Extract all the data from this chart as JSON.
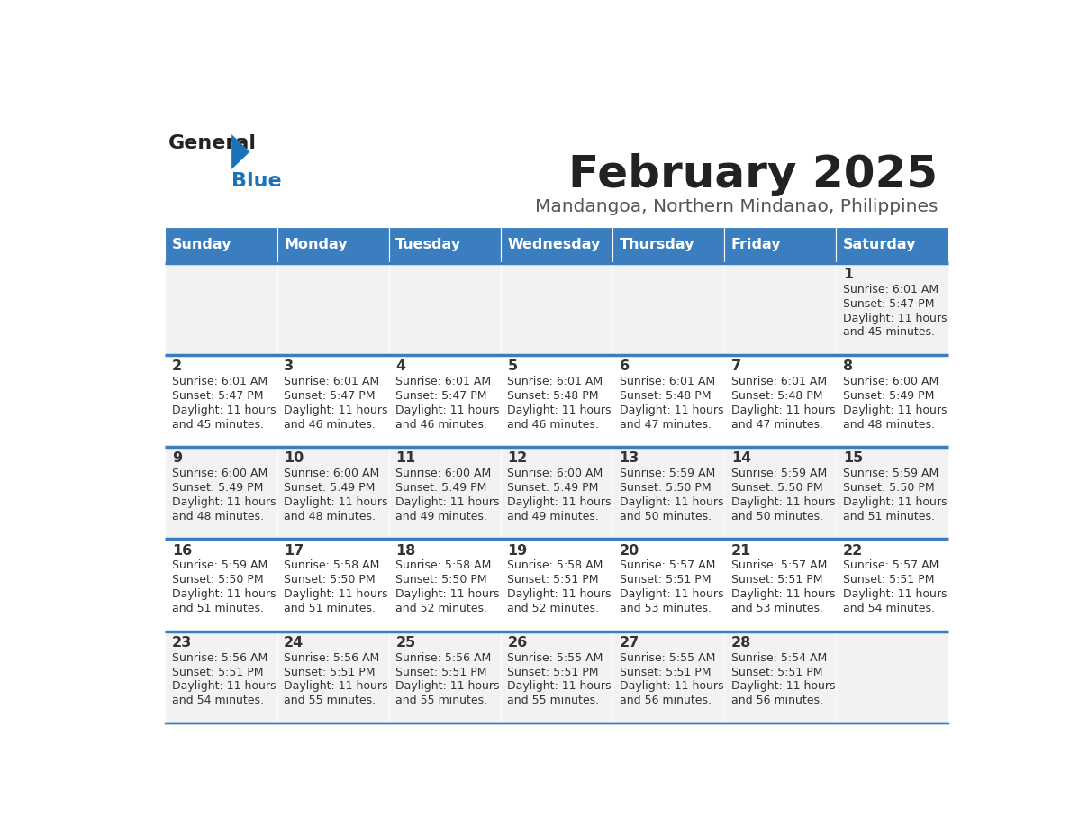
{
  "title": "February 2025",
  "subtitle": "Mandangoa, Northern Mindanao, Philippines",
  "days_of_week": [
    "Sunday",
    "Monday",
    "Tuesday",
    "Wednesday",
    "Thursday",
    "Friday",
    "Saturday"
  ],
  "header_bg": "#3a7ebf",
  "header_text": "#ffffff",
  "row_bg_odd": "#f2f2f2",
  "row_bg_even": "#ffffff",
  "separator_color": "#3a7ebf",
  "text_color": "#333333",
  "title_color": "#222222",
  "subtitle_color": "#555555",
  "logo_general_color": "#222222",
  "logo_blue_color": "#1a72b8",
  "calendar_data": [
    {
      "day": 1,
      "col": 6,
      "row": 0,
      "sunrise": "6:01 AM",
      "sunset": "5:47 PM",
      "daylight_hours": 11,
      "daylight_minutes": 45
    },
    {
      "day": 2,
      "col": 0,
      "row": 1,
      "sunrise": "6:01 AM",
      "sunset": "5:47 PM",
      "daylight_hours": 11,
      "daylight_minutes": 45
    },
    {
      "day": 3,
      "col": 1,
      "row": 1,
      "sunrise": "6:01 AM",
      "sunset": "5:47 PM",
      "daylight_hours": 11,
      "daylight_minutes": 46
    },
    {
      "day": 4,
      "col": 2,
      "row": 1,
      "sunrise": "6:01 AM",
      "sunset": "5:47 PM",
      "daylight_hours": 11,
      "daylight_minutes": 46
    },
    {
      "day": 5,
      "col": 3,
      "row": 1,
      "sunrise": "6:01 AM",
      "sunset": "5:48 PM",
      "daylight_hours": 11,
      "daylight_minutes": 46
    },
    {
      "day": 6,
      "col": 4,
      "row": 1,
      "sunrise": "6:01 AM",
      "sunset": "5:48 PM",
      "daylight_hours": 11,
      "daylight_minutes": 47
    },
    {
      "day": 7,
      "col": 5,
      "row": 1,
      "sunrise": "6:01 AM",
      "sunset": "5:48 PM",
      "daylight_hours": 11,
      "daylight_minutes": 47
    },
    {
      "day": 8,
      "col": 6,
      "row": 1,
      "sunrise": "6:00 AM",
      "sunset": "5:49 PM",
      "daylight_hours": 11,
      "daylight_minutes": 48
    },
    {
      "day": 9,
      "col": 0,
      "row": 2,
      "sunrise": "6:00 AM",
      "sunset": "5:49 PM",
      "daylight_hours": 11,
      "daylight_minutes": 48
    },
    {
      "day": 10,
      "col": 1,
      "row": 2,
      "sunrise": "6:00 AM",
      "sunset": "5:49 PM",
      "daylight_hours": 11,
      "daylight_minutes": 48
    },
    {
      "day": 11,
      "col": 2,
      "row": 2,
      "sunrise": "6:00 AM",
      "sunset": "5:49 PM",
      "daylight_hours": 11,
      "daylight_minutes": 49
    },
    {
      "day": 12,
      "col": 3,
      "row": 2,
      "sunrise": "6:00 AM",
      "sunset": "5:49 PM",
      "daylight_hours": 11,
      "daylight_minutes": 49
    },
    {
      "day": 13,
      "col": 4,
      "row": 2,
      "sunrise": "5:59 AM",
      "sunset": "5:50 PM",
      "daylight_hours": 11,
      "daylight_minutes": 50
    },
    {
      "day": 14,
      "col": 5,
      "row": 2,
      "sunrise": "5:59 AM",
      "sunset": "5:50 PM",
      "daylight_hours": 11,
      "daylight_minutes": 50
    },
    {
      "day": 15,
      "col": 6,
      "row": 2,
      "sunrise": "5:59 AM",
      "sunset": "5:50 PM",
      "daylight_hours": 11,
      "daylight_minutes": 51
    },
    {
      "day": 16,
      "col": 0,
      "row": 3,
      "sunrise": "5:59 AM",
      "sunset": "5:50 PM",
      "daylight_hours": 11,
      "daylight_minutes": 51
    },
    {
      "day": 17,
      "col": 1,
      "row": 3,
      "sunrise": "5:58 AM",
      "sunset": "5:50 PM",
      "daylight_hours": 11,
      "daylight_minutes": 51
    },
    {
      "day": 18,
      "col": 2,
      "row": 3,
      "sunrise": "5:58 AM",
      "sunset": "5:50 PM",
      "daylight_hours": 11,
      "daylight_minutes": 52
    },
    {
      "day": 19,
      "col": 3,
      "row": 3,
      "sunrise": "5:58 AM",
      "sunset": "5:51 PM",
      "daylight_hours": 11,
      "daylight_minutes": 52
    },
    {
      "day": 20,
      "col": 4,
      "row": 3,
      "sunrise": "5:57 AM",
      "sunset": "5:51 PM",
      "daylight_hours": 11,
      "daylight_minutes": 53
    },
    {
      "day": 21,
      "col": 5,
      "row": 3,
      "sunrise": "5:57 AM",
      "sunset": "5:51 PM",
      "daylight_hours": 11,
      "daylight_minutes": 53
    },
    {
      "day": 22,
      "col": 6,
      "row": 3,
      "sunrise": "5:57 AM",
      "sunset": "5:51 PM",
      "daylight_hours": 11,
      "daylight_minutes": 54
    },
    {
      "day": 23,
      "col": 0,
      "row": 4,
      "sunrise": "5:56 AM",
      "sunset": "5:51 PM",
      "daylight_hours": 11,
      "daylight_minutes": 54
    },
    {
      "day": 24,
      "col": 1,
      "row": 4,
      "sunrise": "5:56 AM",
      "sunset": "5:51 PM",
      "daylight_hours": 11,
      "daylight_minutes": 55
    },
    {
      "day": 25,
      "col": 2,
      "row": 4,
      "sunrise": "5:56 AM",
      "sunset": "5:51 PM",
      "daylight_hours": 11,
      "daylight_minutes": 55
    },
    {
      "day": 26,
      "col": 3,
      "row": 4,
      "sunrise": "5:55 AM",
      "sunset": "5:51 PM",
      "daylight_hours": 11,
      "daylight_minutes": 55
    },
    {
      "day": 27,
      "col": 4,
      "row": 4,
      "sunrise": "5:55 AM",
      "sunset": "5:51 PM",
      "daylight_hours": 11,
      "daylight_minutes": 56
    },
    {
      "day": 28,
      "col": 5,
      "row": 4,
      "sunrise": "5:54 AM",
      "sunset": "5:51 PM",
      "daylight_hours": 11,
      "daylight_minutes": 56
    }
  ]
}
